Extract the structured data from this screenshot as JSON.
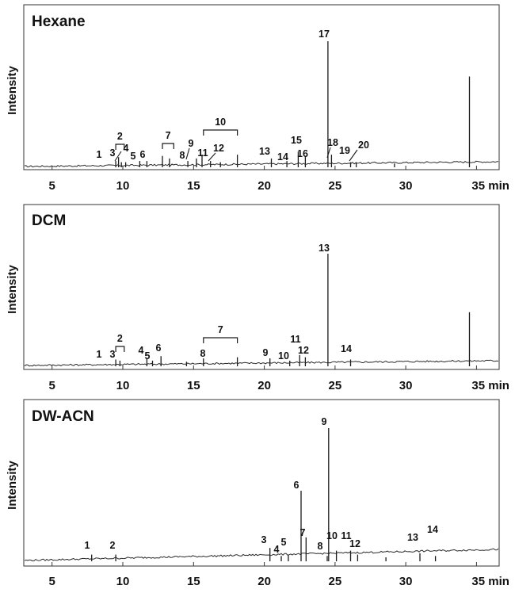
{
  "chart_data": [
    {
      "type": "line",
      "title": "Hexane",
      "ylabel": "Intensity",
      "xlabel": "",
      "xlim": [
        3,
        36.6
      ],
      "ylim": [
        0,
        100
      ],
      "xticks": [
        5,
        10,
        15,
        20,
        25,
        30,
        35
      ],
      "xtick_labels": [
        "5",
        "10",
        "15",
        "20",
        "25",
        "30",
        "35 min"
      ],
      "peaks": [
        {
          "rt": 9.5,
          "h": 5,
          "label": "1"
        },
        {
          "rt": 9.7,
          "h": 8,
          "label": "2"
        },
        {
          "rt": 9.9,
          "h": 4,
          "label": "3"
        },
        {
          "rt": 10.2,
          "h": 4,
          "label": "4"
        },
        {
          "rt": 11.2,
          "h": 5,
          "label": "5"
        },
        {
          "rt": 11.7,
          "h": 5,
          "label": "6"
        },
        {
          "rt": 12.8,
          "h": 9,
          "label": "7"
        },
        {
          "rt": 13.3,
          "h": 7,
          "label": ""
        },
        {
          "rt": 14.6,
          "h": 5,
          "label": "8"
        },
        {
          "rt": 15.2,
          "h": 7,
          "label": "9"
        },
        {
          "rt": 15.6,
          "h": 10,
          "label": ""
        },
        {
          "rt": 16.2,
          "h": 5,
          "label": "11"
        },
        {
          "rt": 16.9,
          "h": 4,
          "label": "12"
        },
        {
          "rt": 18.1,
          "h": 10,
          "label": ""
        },
        {
          "rt": 20.5,
          "h": 7,
          "label": "13"
        },
        {
          "rt": 21.6,
          "h": 5,
          "label": "14"
        },
        {
          "rt": 22.4,
          "h": 12,
          "label": "15"
        },
        {
          "rt": 22.9,
          "h": 9,
          "label": "16"
        },
        {
          "rt": 24.5,
          "h": 100,
          "label": "17"
        },
        {
          "rt": 24.75,
          "h": 10,
          "label": "18"
        },
        {
          "rt": 26.1,
          "h": 4,
          "label": "19"
        },
        {
          "rt": 26.5,
          "h": 4,
          "label": "20"
        },
        {
          "rt": 29.2,
          "h": 3,
          "label": ""
        },
        {
          "rt": 34.5,
          "h": 72,
          "label": ""
        }
      ],
      "brackets": [
        {
          "from": 9.5,
          "to": 10.1,
          "label": "2"
        },
        {
          "from": 12.8,
          "to": 13.6,
          "label": "7"
        },
        {
          "from": 15.7,
          "to": 18.1,
          "label": "10"
        }
      ]
    },
    {
      "type": "line",
      "title": "DCM",
      "ylabel": "Intensity",
      "xlabel": "",
      "xlim": [
        3,
        36.6
      ],
      "ylim": [
        0,
        100
      ],
      "xticks": [
        5,
        10,
        15,
        20,
        25,
        30,
        35
      ],
      "xtick_labels": [
        "5",
        "10",
        "15",
        "20",
        "25",
        "30",
        "35 min"
      ],
      "peaks": [
        {
          "rt": 9.5,
          "h": 6,
          "label": "1"
        },
        {
          "rt": 9.8,
          "h": 5,
          "label": "3"
        },
        {
          "rt": 11.7,
          "h": 7,
          "label": "4"
        },
        {
          "rt": 12.1,
          "h": 5,
          "label": "5"
        },
        {
          "rt": 12.7,
          "h": 9,
          "label": "6"
        },
        {
          "rt": 14.5,
          "h": 4,
          "label": ""
        },
        {
          "rt": 15.7,
          "h": 7,
          "label": "8"
        },
        {
          "rt": 18.1,
          "h": 8,
          "label": ""
        },
        {
          "rt": 20.4,
          "h": 7,
          "label": "9"
        },
        {
          "rt": 21.8,
          "h": 5,
          "label": "10"
        },
        {
          "rt": 22.5,
          "h": 10,
          "label": "11"
        },
        {
          "rt": 22.9,
          "h": 8,
          "label": "12"
        },
        {
          "rt": 24.5,
          "h": 100,
          "label": "13"
        },
        {
          "rt": 26.1,
          "h": 6,
          "label": "14"
        },
        {
          "rt": 34.5,
          "h": 48,
          "label": ""
        }
      ],
      "brackets": [
        {
          "from": 9.5,
          "to": 10.1,
          "label": "2"
        },
        {
          "from": 15.7,
          "to": 18.1,
          "label": "7"
        }
      ]
    },
    {
      "type": "line",
      "title": "DW-ACN",
      "ylabel": "Intensity",
      "xlabel": "",
      "xlim": [
        3,
        36.6
      ],
      "ylim": [
        0,
        100
      ],
      "xticks": [
        5,
        10,
        15,
        20,
        25,
        30,
        35
      ],
      "xtick_labels": [
        "5",
        "10",
        "15",
        "20",
        "25",
        "30",
        "35 min"
      ],
      "peaks": [
        {
          "rt": 7.8,
          "h": 5,
          "label": "1"
        },
        {
          "rt": 9.5,
          "h": 5,
          "label": "2"
        },
        {
          "rt": 20.4,
          "h": 10,
          "label": "3"
        },
        {
          "rt": 21.2,
          "h": 4,
          "label": "4"
        },
        {
          "rt": 21.7,
          "h": 5,
          "label": "5"
        },
        {
          "rt": 22.6,
          "h": 53,
          "label": "6"
        },
        {
          "rt": 22.95,
          "h": 18,
          "label": "7"
        },
        {
          "rt": 24.45,
          "h": 4,
          "label": "8"
        },
        {
          "rt": 24.55,
          "h": 100,
          "label": "9"
        },
        {
          "rt": 25.1,
          "h": 8,
          "label": "10"
        },
        {
          "rt": 26.1,
          "h": 8,
          "label": "11"
        },
        {
          "rt": 26.6,
          "h": 5,
          "label": "12"
        },
        {
          "rt": 28.6,
          "h": 3,
          "label": ""
        },
        {
          "rt": 31.0,
          "h": 6,
          "label": "13"
        },
        {
          "rt": 32.1,
          "h": 4,
          "label": "14"
        }
      ],
      "brackets": []
    }
  ]
}
